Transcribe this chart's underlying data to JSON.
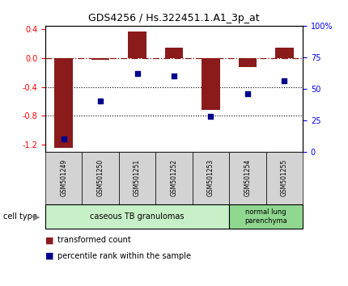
{
  "title": "GDS4256 / Hs.322451.1.A1_3p_at",
  "samples": [
    "GSM501249",
    "GSM501250",
    "GSM501251",
    "GSM501252",
    "GSM501253",
    "GSM501254",
    "GSM501255"
  ],
  "transformed_count": [
    -1.25,
    -0.02,
    0.37,
    0.15,
    -0.72,
    -0.12,
    0.15
  ],
  "percentile_rank": [
    10,
    40,
    62,
    60,
    28,
    46,
    56
  ],
  "bar_color": "#8B1A1A",
  "dot_color": "#00008B",
  "ylim_left": [
    -1.3,
    0.45
  ],
  "ylim_right": [
    0,
    100
  ],
  "yticks_left": [
    -1.2,
    -0.8,
    -0.4,
    0.0,
    0.4
  ],
  "yticks_right": [
    0,
    25,
    50,
    75,
    100
  ],
  "ytick_labels_right": [
    "0",
    "25",
    "50",
    "75",
    "100%"
  ],
  "hline_y": 0.0,
  "dotted_lines": [
    -0.4,
    -0.8
  ],
  "group1_label": "caseous TB granulomas",
  "group2_label": "normal lung\nparenchyma",
  "group1_color": "#c8f0c8",
  "group2_color": "#90d890",
  "cell_type_label": "cell type",
  "legend_bar_label": "transformed count",
  "legend_dot_label": "percentile rank within the sample",
  "plot_bg": "#ffffff",
  "bar_width": 0.5,
  "sample_box_color": "#d3d3d3"
}
